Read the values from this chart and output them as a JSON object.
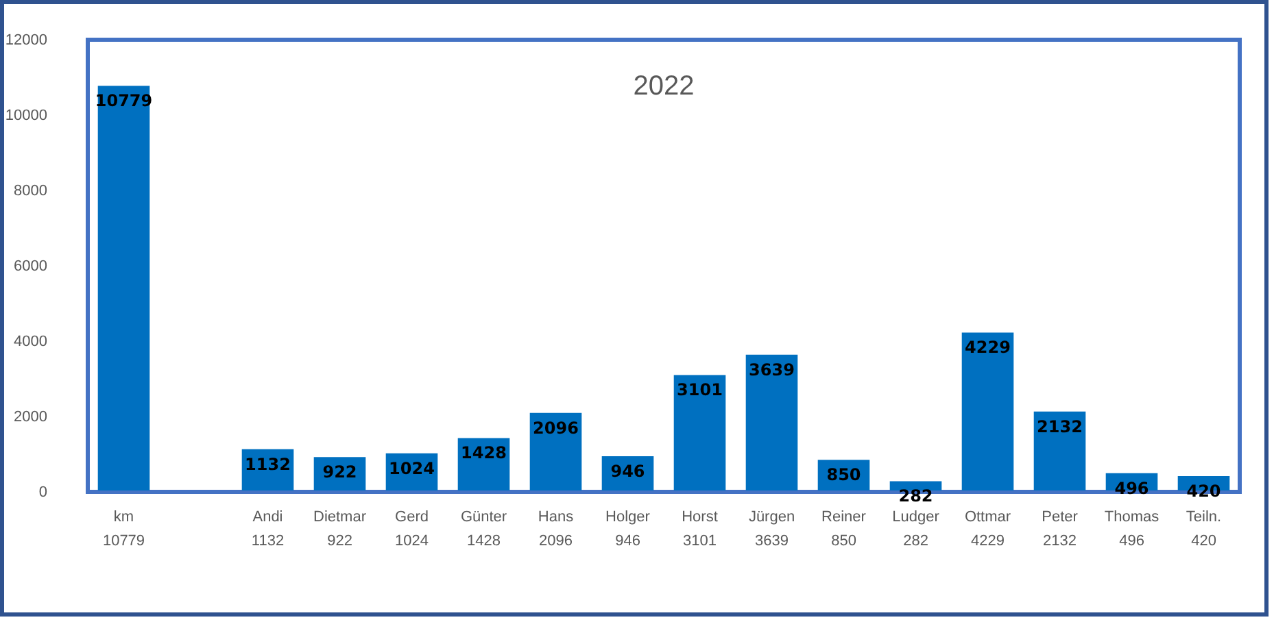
{
  "chart_data": {
    "type": "bar",
    "title": "2022",
    "categories": [
      "km",
      null,
      "Andi",
      "Dietmar",
      "Gerd",
      "Günter",
      "Hans",
      "Holger",
      "Horst",
      "Jürgen",
      "Reiner",
      "Ludger",
      "Ottmar",
      "Peter",
      "Thomas",
      "Teiln."
    ],
    "values": [
      10779,
      null,
      1132,
      922,
      1024,
      1428,
      2096,
      946,
      3101,
      3639,
      850,
      282,
      4229,
      2132,
      496,
      420
    ],
    "color": "#0070c0",
    "ylim": [
      0,
      12000
    ],
    "yticks": [
      0,
      2000,
      4000,
      6000,
      8000,
      10000,
      12000
    ],
    "data_labels": true,
    "grid": false,
    "legend": false,
    "annotations": [
      "10779",
      "1132",
      "922",
      "1024",
      "1428",
      "2096",
      "946",
      "3101",
      "3639",
      "850",
      "282",
      "4229",
      "2132",
      "496",
      "420"
    ]
  }
}
